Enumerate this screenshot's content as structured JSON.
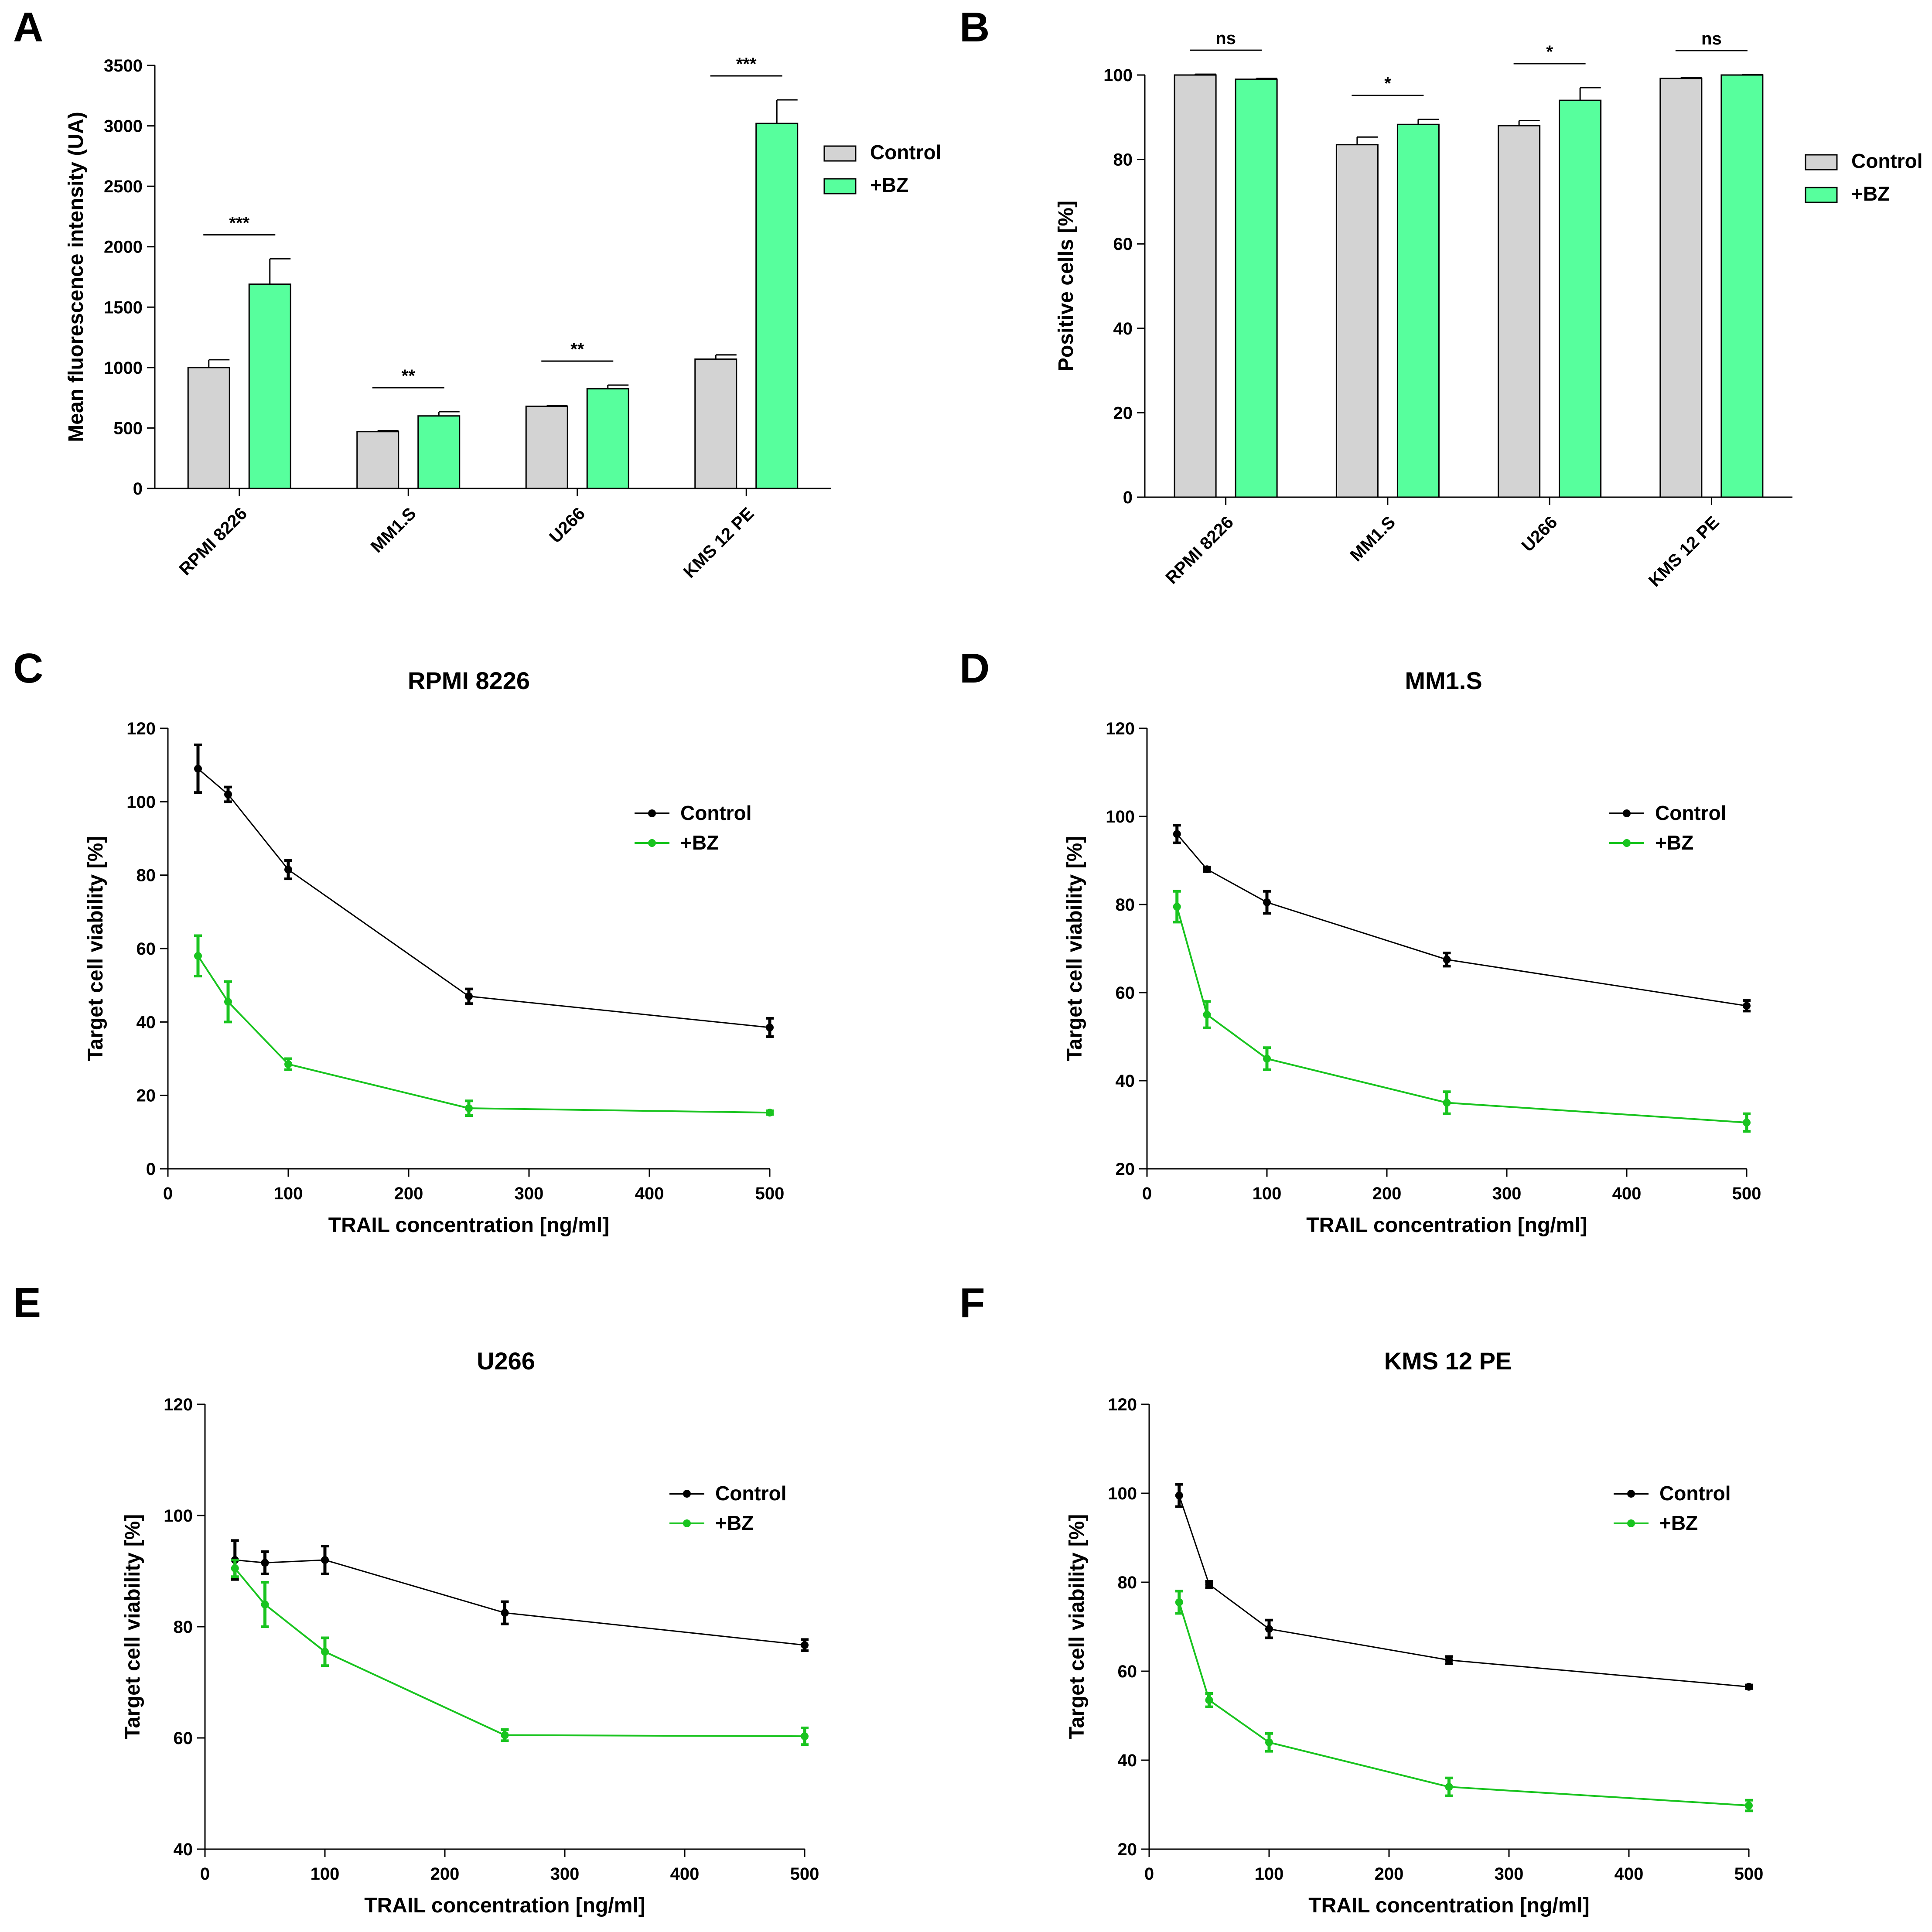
{
  "colors": {
    "control_bar": "#d3d3d3",
    "bz_bar": "#57ff9d",
    "control_line": "#000000",
    "bz_line": "#19c41f",
    "axis": "#000000"
  },
  "chart_data": [
    {
      "id": "A",
      "type": "bar",
      "panel_label": "A",
      "title": "",
      "ylabel": "Mean fluorescence intensity (UA)",
      "xlabel": "",
      "ylim": [
        0,
        3500
      ],
      "yticks": [
        0,
        500,
        1000,
        1500,
        2000,
        2500,
        3000,
        3500
      ],
      "categories": [
        "RPMI 8226",
        "MM1.S",
        "U266",
        "KMS 12 PE"
      ],
      "series": [
        {
          "name": "Control",
          "values": [
            1000,
            470,
            680,
            1070
          ],
          "errors": [
            65,
            8,
            6,
            35
          ]
        },
        {
          "name": "+BZ",
          "values": [
            1690,
            600,
            825,
            3020
          ],
          "errors": [
            210,
            35,
            30,
            195
          ]
        }
      ],
      "significance": [
        "***",
        "**",
        "**",
        "***"
      ],
      "legend": [
        "Control",
        "+BZ"
      ]
    },
    {
      "id": "B",
      "type": "bar",
      "panel_label": "B",
      "title": "",
      "ylabel": "Positive cells [%]",
      "xlabel": "",
      "ylim": [
        0,
        100
      ],
      "yticks": [
        0,
        20,
        40,
        60,
        80,
        100
      ],
      "categories": [
        "RPMI 8226",
        "MM1.S",
        "U266",
        "KMS 12 PE"
      ],
      "series": [
        {
          "name": "Control",
          "values": [
            100,
            83.5,
            88,
            99.2
          ],
          "errors": [
            0.2,
            1.8,
            1.2,
            0.2
          ]
        },
        {
          "name": "+BZ",
          "values": [
            99,
            88.3,
            94,
            100
          ],
          "errors": [
            0.2,
            1.2,
            3,
            0.1
          ]
        }
      ],
      "significance": [
        "ns",
        "*",
        "*",
        "ns"
      ],
      "legend": [
        "Control",
        "+BZ"
      ]
    },
    {
      "id": "C",
      "type": "line",
      "panel_label": "C",
      "title": "RPMI 8226",
      "xlabel": "TRAIL concentration [ng/ml]",
      "ylabel": "Target cell viability [%]",
      "xlim": [
        0,
        500
      ],
      "ylim": [
        0,
        120
      ],
      "xticks": [
        0,
        100,
        200,
        300,
        400,
        500
      ],
      "yticks": [
        0,
        20,
        40,
        60,
        80,
        100,
        120
      ],
      "x": [
        25,
        50,
        100,
        250,
        500
      ],
      "series": [
        {
          "name": "Control",
          "values": [
            109,
            102,
            81.5,
            47,
            38.5
          ],
          "errors": [
            6.5,
            2,
            2.5,
            2,
            2.5
          ]
        },
        {
          "name": "+BZ",
          "values": [
            58,
            45.5,
            28.5,
            16.5,
            15.3
          ],
          "errors": [
            5.5,
            5.5,
            1.5,
            2,
            0.5
          ]
        }
      ],
      "legend": [
        "Control",
        "+BZ"
      ]
    },
    {
      "id": "D",
      "type": "line",
      "panel_label": "D",
      "title": "MM1.S",
      "xlabel": "TRAIL concentration [ng/ml]",
      "ylabel": "Target cell viability [%]",
      "xlim": [
        0,
        500
      ],
      "ylim": [
        20,
        120
      ],
      "xticks": [
        0,
        100,
        200,
        300,
        400,
        500
      ],
      "yticks": [
        20,
        40,
        60,
        80,
        100,
        120
      ],
      "x": [
        25,
        50,
        100,
        250,
        500
      ],
      "series": [
        {
          "name": "Control",
          "values": [
            96,
            88,
            80.5,
            67.5,
            57
          ],
          "errors": [
            2,
            0.5,
            2.5,
            1.5,
            1.2
          ]
        },
        {
          "name": "+BZ",
          "values": [
            79.5,
            55,
            45,
            35,
            30.5
          ],
          "errors": [
            3.5,
            3,
            2.5,
            2.5,
            2
          ]
        }
      ],
      "legend": [
        "Control",
        "+BZ"
      ]
    },
    {
      "id": "E",
      "type": "line",
      "panel_label": "E",
      "title": "U266",
      "xlabel": "TRAIL concentration [ng/ml]",
      "ylabel": "Target cell viability [%]",
      "xlim": [
        0,
        500
      ],
      "ylim": [
        40,
        120
      ],
      "xticks": [
        0,
        100,
        200,
        300,
        400,
        500
      ],
      "yticks": [
        40,
        60,
        80,
        100,
        120
      ],
      "x": [
        25,
        50,
        100,
        250,
        500
      ],
      "series": [
        {
          "name": "Control",
          "values": [
            92,
            91.5,
            92,
            82.5,
            76.7
          ],
          "errors": [
            3.5,
            2,
            2.5,
            2,
            1
          ]
        },
        {
          "name": "+BZ",
          "values": [
            90.5,
            84,
            75.5,
            60.5,
            60.3
          ],
          "errors": [
            1.5,
            4,
            2.5,
            1,
            1.5
          ]
        }
      ],
      "legend": [
        "Control",
        "+BZ"
      ]
    },
    {
      "id": "F",
      "type": "line",
      "panel_label": "F",
      "title": "KMS 12 PE",
      "xlabel": "TRAIL concentration [ng/ml]",
      "ylabel": "Target cell viability [%]",
      "xlim": [
        0,
        500
      ],
      "ylim": [
        20,
        120
      ],
      "xticks": [
        0,
        100,
        200,
        300,
        400,
        500
      ],
      "yticks": [
        20,
        40,
        60,
        80,
        100,
        120
      ],
      "x": [
        25,
        50,
        100,
        250,
        500
      ],
      "series": [
        {
          "name": "Control",
          "values": [
            99.5,
            79.5,
            69.5,
            62.5,
            56.5
          ],
          "errors": [
            2.5,
            0.7,
            2,
            0.8,
            0.4
          ]
        },
        {
          "name": "+BZ",
          "values": [
            75.5,
            53.5,
            44,
            34,
            29.8
          ],
          "errors": [
            2.5,
            1.5,
            2,
            2,
            1.2
          ]
        }
      ],
      "legend": [
        "Control",
        "+BZ"
      ]
    }
  ]
}
